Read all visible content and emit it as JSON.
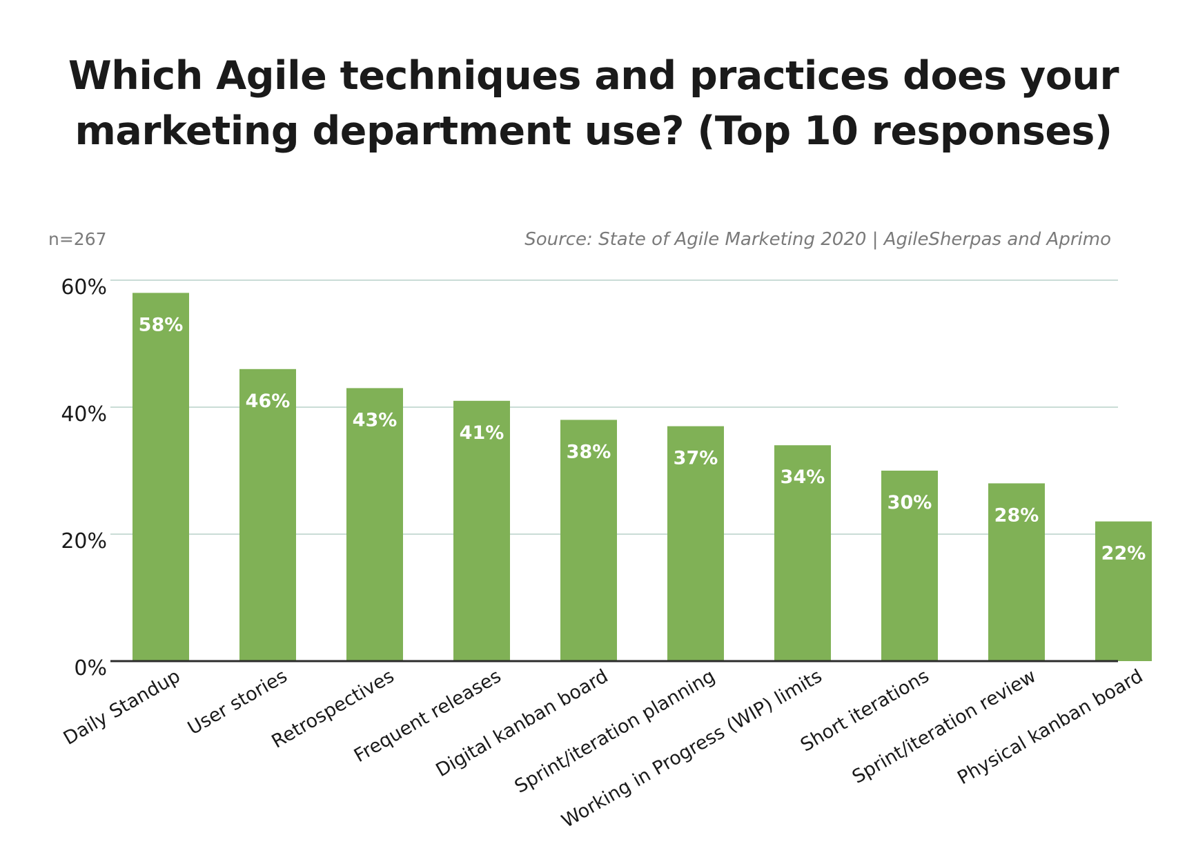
{
  "chart_data": {
    "type": "bar",
    "title_lines": [
      "Which Agile techniques and practices does your",
      "marketing department use? (Top 10 responses)"
    ],
    "sample_size": "n=267",
    "source": "Source: State of Agile Marketing 2020 | AgileSherpas and Aprimo",
    "categories": [
      "Daily Standup",
      "User stories",
      "Retrospectives",
      "Frequent releases",
      "Digital kanban board",
      "Sprint/iteration planning",
      "Working in Progress (WIP) limits",
      "Short iterations",
      "Sprint/iteration review",
      "Physical kanban board"
    ],
    "values": [
      58,
      46,
      43,
      41,
      38,
      37,
      34,
      30,
      28,
      22
    ],
    "value_labels": [
      "58%",
      "46%",
      "43%",
      "41%",
      "38%",
      "37%",
      "34%",
      "30%",
      "28%",
      "22%"
    ],
    "yticks": [
      0,
      20,
      40,
      60
    ],
    "ytick_labels": [
      "0%",
      "20%",
      "40%",
      "60%"
    ],
    "ylim": [
      0,
      60
    ],
    "grid": true,
    "legend": "none",
    "colors": {
      "bar": "#80b156",
      "grid": "#c9dcd6",
      "axis": "#2b2b2b",
      "text": "#1a1a1a",
      "muted": "#7a7a7a"
    }
  }
}
